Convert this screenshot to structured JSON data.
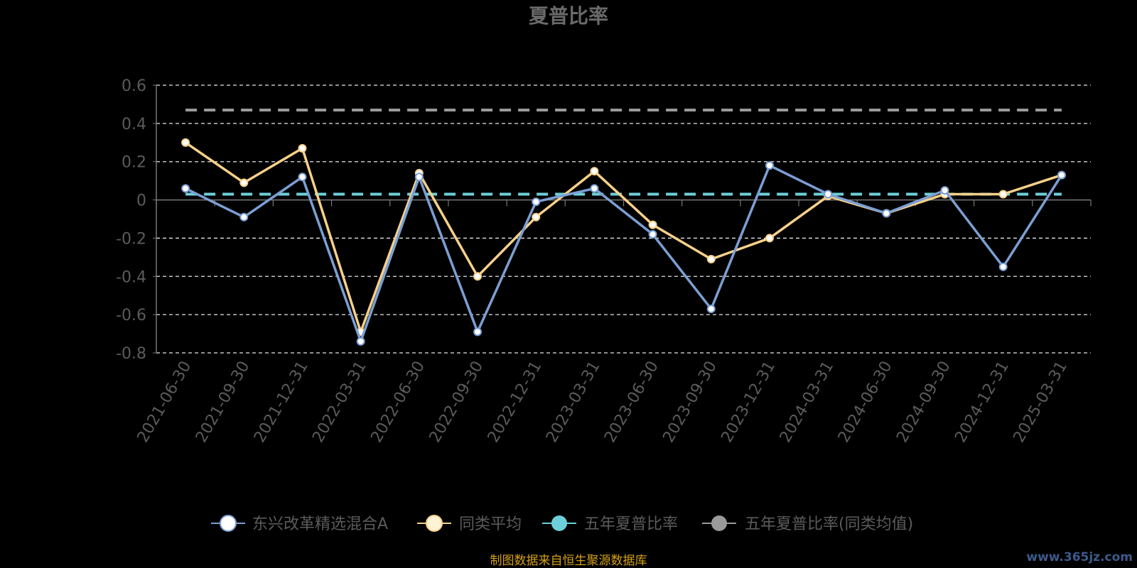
{
  "chart_data": {
    "type": "line",
    "title": "夏普比率",
    "categories": [
      "2021-06-30",
      "2021-09-30",
      "2021-12-31",
      "2022-03-31",
      "2022-06-30",
      "2022-09-30",
      "2022-12-31",
      "2023-03-31",
      "2023-06-30",
      "2023-09-30",
      "2023-12-31",
      "2024-03-31",
      "2024-06-30",
      "2024-09-30",
      "2024-12-31",
      "2025-03-31"
    ],
    "y_ticks": [
      "0.6",
      "0.4",
      "0.2",
      "0",
      "-0.2",
      "-0.4",
      "-0.6",
      "-0.8"
    ],
    "ylim": [
      -0.8,
      0.6
    ],
    "grid": true,
    "legend_position": "bottom",
    "series": [
      {
        "name": "东兴改革精选混合A",
        "color": "#7b9fd4",
        "values": [
          0.06,
          -0.09,
          0.12,
          -0.74,
          0.12,
          -0.69,
          -0.01,
          0.06,
          -0.18,
          -0.57,
          0.18,
          0.03,
          -0.07,
          0.05,
          -0.35,
          0.13
        ]
      },
      {
        "name": "同类平均",
        "color": "#f7d08a",
        "values": [
          0.3,
          0.09,
          0.27,
          -0.69,
          0.14,
          -0.4,
          -0.09,
          0.15,
          -0.13,
          -0.31,
          -0.2,
          0.02,
          -0.07,
          0.03,
          0.03,
          0.13
        ]
      },
      {
        "name": "五年夏普比率",
        "color": "#6ccfd9",
        "reference_value": 0.03
      },
      {
        "name": "五年夏普比率(同类均值)",
        "color": "#9a9a9a",
        "reference_value": 0.47
      }
    ]
  },
  "legend_marker_colors": {
    "fund": "#ffffff",
    "peer": "#fff3d6",
    "five_year": "#6ccfd9",
    "five_year_peer": "#9a9a9a"
  },
  "source": "制图数据来自恒生聚源数据库",
  "watermark": "www.365jz.com"
}
